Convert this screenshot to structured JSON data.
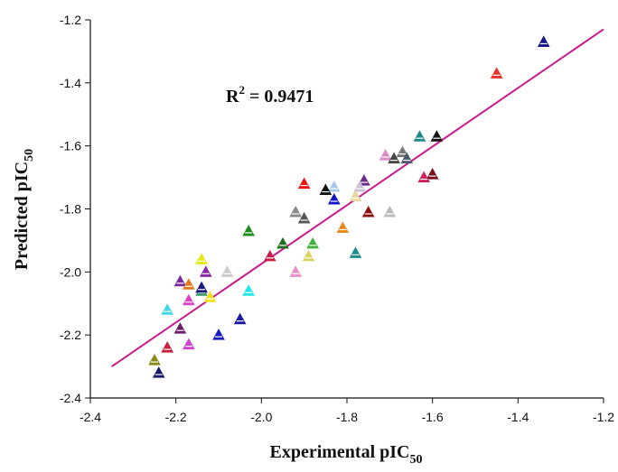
{
  "chart_data": {
    "type": "scatter",
    "xlabel": {
      "text": "Experimental pIC",
      "sub": "50"
    },
    "ylabel": {
      "text": "Predicted pIC",
      "sub": "50"
    },
    "annotation": {
      "text": "R",
      "sup": "2",
      "rest": " = 0.9471"
    },
    "xlim": [
      -2.4,
      -1.2
    ],
    "ylim": [
      -2.4,
      -1.2
    ],
    "xticks": [
      -2.4,
      -2.2,
      {
        "value": -2.0,
        "label": "-2.0"
      },
      -1.8,
      -1.6,
      -1.4,
      -1.2
    ],
    "yticks": [
      -2.4,
      -2.2,
      {
        "value": -2.0,
        "label": "-2.0"
      },
      -1.8,
      -1.6,
      -1.4,
      -1.2
    ],
    "x": [
      -1.34,
      -1.45,
      -1.59,
      -1.63,
      -1.71,
      -1.67,
      -1.66,
      -1.69,
      -1.6,
      -1.62,
      -1.76,
      -1.77,
      -1.75,
      -1.7,
      -1.83,
      -1.85,
      -1.83,
      -1.78,
      -1.9,
      -1.92,
      -1.9,
      -1.81,
      -1.78,
      -1.88,
      -1.95,
      -1.89,
      -1.98,
      -1.92,
      -2.03,
      -2.03,
      -2.08,
      -2.05,
      -2.14,
      -2.13,
      -2.19,
      -2.17,
      -2.14,
      -2.14,
      -2.12,
      -2.17,
      -2.22,
      -2.1,
      -2.19,
      -2.17,
      -2.22,
      -2.25,
      -2.24
    ],
    "y": [
      -1.27,
      -1.37,
      -1.57,
      -1.57,
      -1.63,
      -1.62,
      -1.64,
      -1.64,
      -1.69,
      -1.7,
      -1.71,
      -1.73,
      -1.81,
      -1.81,
      -1.73,
      -1.74,
      -1.77,
      -1.76,
      -1.72,
      -1.81,
      -1.83,
      -1.86,
      -1.94,
      -1.91,
      -1.91,
      -1.95,
      -1.95,
      -2.0,
      -1.87,
      -2.06,
      -2.0,
      -2.15,
      -1.96,
      -2.0,
      -2.03,
      -2.04,
      -2.06,
      -2.05,
      -2.08,
      -2.09,
      -2.12,
      -2.2,
      -2.18,
      -2.23,
      -2.24,
      -2.28,
      -2.32
    ],
    "colors": [
      "#1a1a8c",
      "#e8322a",
      "#111111",
      "#1e8c8c",
      "#d98cc8",
      "#777777",
      "#4a5a6a",
      "#444444",
      "#7a0f1a",
      "#d0205a",
      "#6a2a8a",
      "#c8c0d8",
      "#8a1010",
      "#bbbbbb",
      "#a8c8e8",
      "#111111",
      "#1414c8",
      "#e8d8a0",
      "#e81414",
      "#888888",
      "#555555",
      "#e88a20",
      "#1e8c8c",
      "#3cb43c",
      "#1e6e1e",
      "#d8d860",
      "#c81e46",
      "#e890c8",
      "#1e8c1e",
      "#20e8e8",
      "#cccccc",
      "#1a1aa0",
      "#e8e814",
      "#8a2aaa",
      "#7a2a9a",
      "#e8781e",
      "#3c9c6c",
      "#1a1a7a",
      "#f0e020",
      "#e040c8",
      "#40d8e8",
      "#1a1ac8",
      "#6a1a6a",
      "#d040d0",
      "#c81e3c",
      "#8a8a1a",
      "#1a1a6a"
    ],
    "fit_line": {
      "x": [
        -2.35,
        -1.2
      ],
      "y": [
        -2.3,
        -1.23
      ],
      "color": "#cc1a8c"
    }
  }
}
